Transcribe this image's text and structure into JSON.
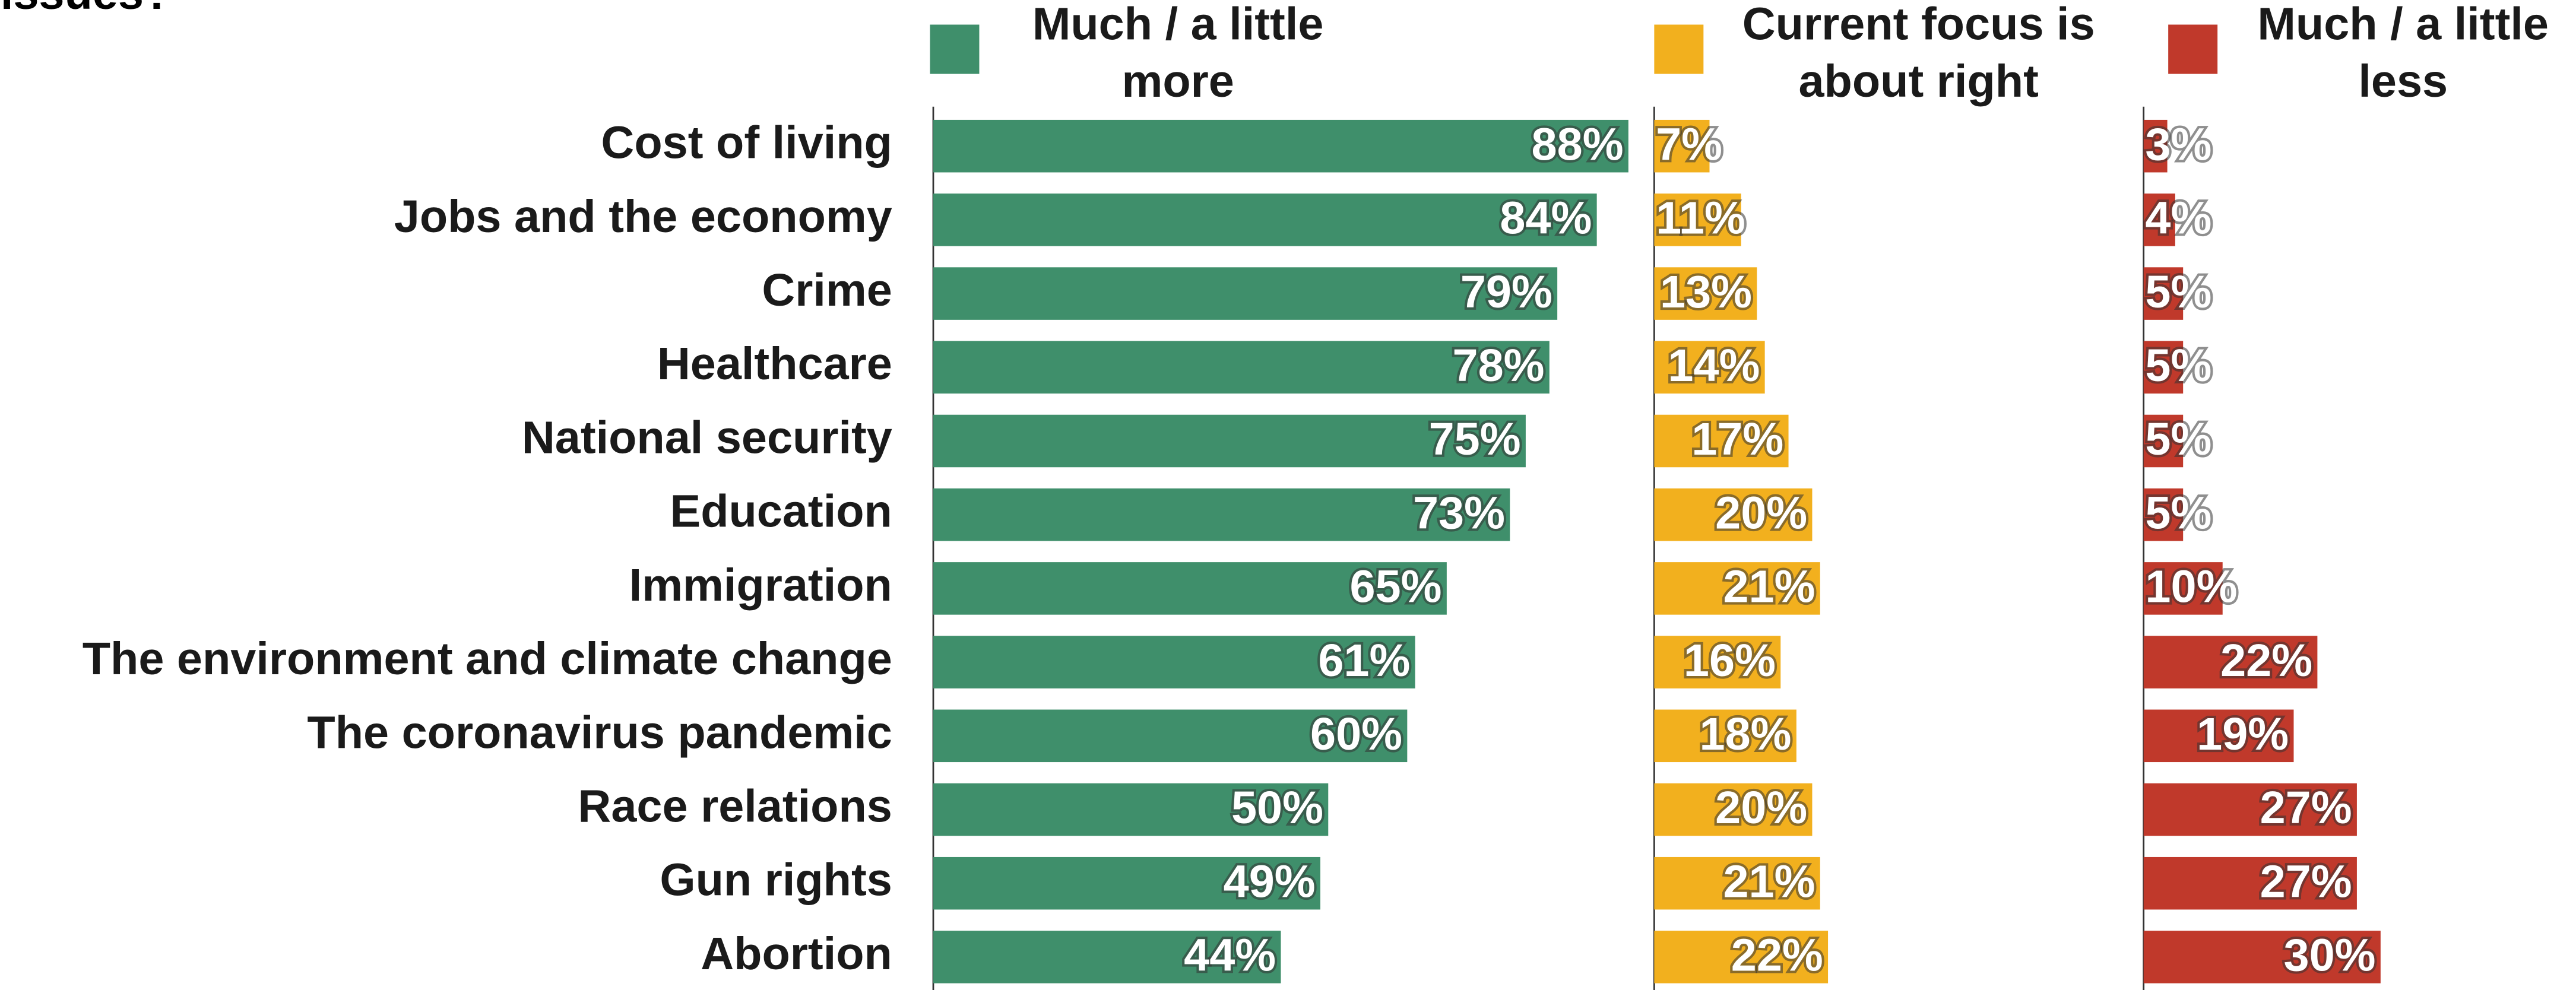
{
  "chart_data": {
    "type": "bar",
    "orientation": "horizontal",
    "title": "issues?",
    "categories": [
      "Cost of living",
      "Jobs and the economy",
      "Crime",
      "Healthcare",
      "National security",
      "Education",
      "Immigration",
      "The environment and climate change",
      "The coronavirus pandemic",
      "Race relations",
      "Gun rights",
      "Abortion"
    ],
    "series": [
      {
        "name": "Much / a little more",
        "color": "#3f8f6b",
        "values": [
          88,
          84,
          79,
          78,
          75,
          73,
          65,
          61,
          60,
          50,
          49,
          44
        ],
        "value_labels": [
          "88%",
          "84%",
          "79%",
          "78%",
          "75%",
          "73%",
          "65%",
          "61%",
          "60%",
          "50%",
          "49%",
          "44%"
        ]
      },
      {
        "name": "Current focus is about right",
        "color": "#f2b01e",
        "values": [
          7,
          11,
          13,
          14,
          17,
          20,
          21,
          16,
          18,
          20,
          21,
          22
        ],
        "value_labels": [
          "7%",
          "11%",
          "13%",
          "14%",
          "17%",
          "20%",
          "21%",
          "16%",
          "18%",
          "20%",
          "21%",
          "22%"
        ]
      },
      {
        "name": "Much / a little less",
        "color": "#c0392b",
        "values": [
          3,
          4,
          5,
          5,
          5,
          5,
          10,
          22,
          19,
          27,
          27,
          30
        ],
        "value_labels": [
          "3%",
          "4%",
          "5%",
          "5%",
          "5%",
          "5%",
          "10%",
          "22%",
          "19%",
          "27%",
          "27%",
          "30%"
        ]
      }
    ]
  }
}
